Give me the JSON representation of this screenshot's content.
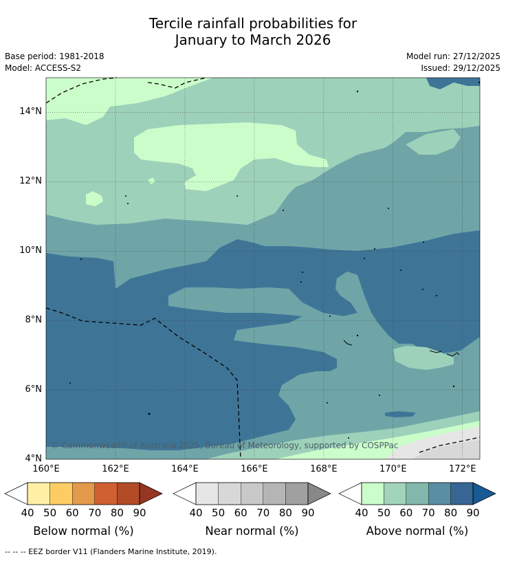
{
  "title_line1": "Tercile rainfall probabilities for",
  "title_line2": "January to March 2026",
  "meta": {
    "base_period": "Base period: 1981-2018",
    "model": "Model: ACCESS-S2",
    "model_run": "Model run: 27/12/2025",
    "issued": "Issued: 29/12/2025"
  },
  "copyright": "© Commonwealth of Australia 2025, Bureau of Meteorology, supported by COSPPac",
  "footnote": "-- -- -- EEZ border V11 (Flanders Marine Institute, 2019).",
  "chart_data": {
    "type": "heatmap",
    "x_axis": {
      "range": [
        160,
        172.5
      ],
      "ticks": [
        "160°E",
        "162°E",
        "164°E",
        "166°E",
        "168°E",
        "170°E",
        "172°E"
      ]
    },
    "y_axis": {
      "range": [
        4,
        15
      ],
      "ticks": [
        "4°N",
        "6°N",
        "8°N",
        "10°N",
        "12°N",
        "14°N"
      ]
    },
    "grid": true,
    "colorbars": [
      {
        "name": "Below normal (%)",
        "ticks": [
          "40",
          "50",
          "60",
          "70",
          "80",
          "90"
        ],
        "colors": [
          "#fff0a6",
          "#fdcc65",
          "#e39a4b",
          "#d05f31",
          "#b34b27",
          "#953522"
        ]
      },
      {
        "name": "Near normal (%)",
        "ticks": [
          "40",
          "50",
          "60",
          "70",
          "80",
          "90"
        ],
        "colors": [
          "#e6e6e6",
          "#d8d8d8",
          "#c9c9c9",
          "#b5b5b5",
          "#a0a0a0",
          "#888888"
        ]
      },
      {
        "name": "Above normal (%)",
        "ticks": [
          "40",
          "50",
          "60",
          "70",
          "80",
          "90"
        ],
        "colors": [
          "#cbfdca",
          "#a2d3bb",
          "#82b7ab",
          "#5a8fa3",
          "#376694",
          "#185996"
        ]
      }
    ],
    "regions": [
      {
        "category": "Above normal",
        "probability_range": "40-50",
        "area": "northwest corner and band near 13°N"
      },
      {
        "category": "Above normal",
        "probability_range": "50-60",
        "area": "north of ~11°N"
      },
      {
        "category": "Above normal",
        "probability_range": "60-70",
        "area": "central band and east"
      },
      {
        "category": "Above normal",
        "probability_range": "70-80",
        "area": "south-west and central-south, ~5°N-10°N"
      },
      {
        "category": "Near normal",
        "probability_range": "40-50",
        "area": "south-east corner near 4°N-5°N"
      }
    ]
  }
}
